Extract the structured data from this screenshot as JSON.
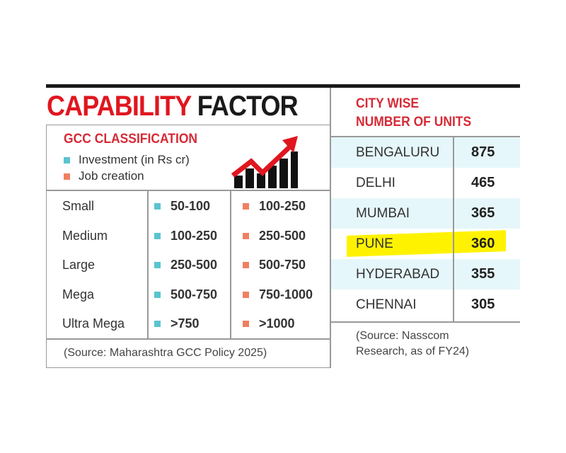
{
  "title": {
    "part1": "CAPABILITY",
    "part2": "FACTOR"
  },
  "gcc": {
    "heading": "GCC CLASSIFICATION",
    "legend": [
      {
        "label": "Investment (in Rs cr)",
        "color": "#5bc4cf"
      },
      {
        "label": "Job creation",
        "color": "#f07f62"
      }
    ],
    "icon": "rising-bar-chart-arrow-icon",
    "rows": [
      {
        "category": "Small",
        "investment": "50-100",
        "jobs": "100-250"
      },
      {
        "category": "Medium",
        "investment": "100-250",
        "jobs": "250-500"
      },
      {
        "category": "Large",
        "investment": "250-500",
        "jobs": "500-750"
      },
      {
        "category": "Mega",
        "investment": "500-750",
        "jobs": "750-1000"
      },
      {
        "category": "Ultra Mega",
        "investment": ">750",
        "jobs": ">1000"
      }
    ],
    "source": "(Source: Maharashtra GCC Policy 2025)"
  },
  "city": {
    "heading1": "CITY WISE",
    "heading2": "NUMBER OF UNITS",
    "rows": [
      {
        "city": "BENGALURU",
        "units": "875"
      },
      {
        "city": "DELHI",
        "units": "465"
      },
      {
        "city": "MUMBAI",
        "units": "365"
      },
      {
        "city": "PUNE",
        "units": "360"
      },
      {
        "city": "HYDERABAD",
        "units": "355"
      },
      {
        "city": "CHENNAI",
        "units": "305"
      }
    ],
    "highlight": "PUNE",
    "highlight_color": "#fff200",
    "stripe_color": "#e6f7fb",
    "source1": "(Source: Nasscom",
    "source2": "Research, as of FY24)"
  },
  "chart_data": [
    {
      "type": "table",
      "title": "GCC CLASSIFICATION",
      "columns": [
        "",
        "Investment (in Rs cr)",
        "Job creation"
      ],
      "rows": [
        [
          "Small",
          "50-100",
          "100-250"
        ],
        [
          "Medium",
          "100-250",
          "250-500"
        ],
        [
          "Large",
          "250-500",
          "500-750"
        ],
        [
          "Mega",
          "500-750",
          "750-1000"
        ],
        [
          "Ultra Mega",
          ">750",
          ">1000"
        ]
      ]
    },
    {
      "type": "table",
      "title": "CITY WISE NUMBER OF UNITS",
      "categories": [
        "BENGALURU",
        "DELHI",
        "MUMBAI",
        "PUNE",
        "HYDERABAD",
        "CHENNAI"
      ],
      "values": [
        875,
        465,
        365,
        360,
        355,
        305
      ]
    }
  ]
}
